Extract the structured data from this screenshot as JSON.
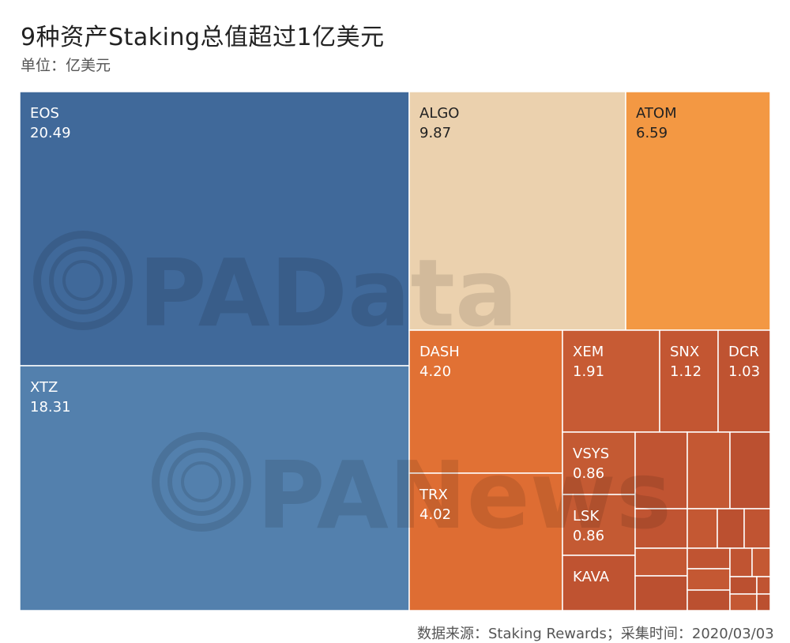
{
  "header": {
    "title": "9种资产Staking总值超过1亿美元",
    "subtitle": "单位：亿美元"
  },
  "footer": {
    "source": "数据来源：Staking Rewards；采集时间：2020/03/03"
  },
  "watermark": {
    "line1": "PAData",
    "line2": "PANews"
  },
  "chart_data": {
    "type": "treemap",
    "unit": "亿美元",
    "items": [
      {
        "name": "EOS",
        "value": 20.49,
        "color": "#40699a"
      },
      {
        "name": "XTZ",
        "value": 18.31,
        "color": "#5380ad"
      },
      {
        "name": "ALGO",
        "value": 9.87,
        "color": "#ebd1ae"
      },
      {
        "name": "ATOM",
        "value": 6.59,
        "color": "#f39843"
      },
      {
        "name": "DASH",
        "value": 4.2,
        "color": "#e17134"
      },
      {
        "name": "TRX",
        "value": 4.02,
        "color": "#de6d33"
      },
      {
        "name": "XEM",
        "value": 1.91,
        "color": "#c75b34"
      },
      {
        "name": "SNX",
        "value": 1.12,
        "color": "#c35632"
      },
      {
        "name": "DCR",
        "value": 1.03,
        "color": "#bf5331"
      },
      {
        "name": "VSYS",
        "value": 0.86,
        "color": "#c45a33"
      },
      {
        "name": "LSK",
        "value": 0.86,
        "color": "#c45a33"
      },
      {
        "name": "KAVA",
        "value": null,
        "color": "#bf5331"
      }
    ]
  }
}
